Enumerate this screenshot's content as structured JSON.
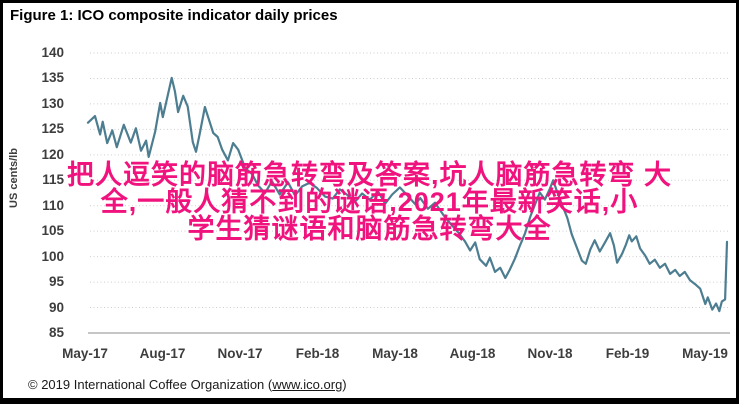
{
  "figure": {
    "title": "Figure 1: ICO composite indicator daily prices",
    "footer": {
      "prefix": "© 2019 International Coffee Organization (",
      "link_text": "www.ico.org",
      "suffix": ")"
    }
  },
  "overlay": {
    "color": "#f0127d",
    "lines": [
      "把人逗笑的脑筋急转弯及答案,坑人脑筋急转弯 大",
      "全,一般人猜不到的谜语,2021年最新笑话,小",
      "学生猜谜语和脑筋急转弯大全"
    ]
  },
  "chart_data": {
    "type": "line",
    "title": "ICO composite indicator daily prices",
    "xlabel": "",
    "ylabel": "US cents/lb",
    "ylim": [
      85,
      140
    ],
    "y_ticks": [
      140,
      135,
      130,
      125,
      120,
      115,
      110,
      105,
      100,
      95,
      90,
      85
    ],
    "x_ticks": [
      "May-17",
      "Aug-17",
      "Nov-17",
      "Feb-18",
      "May-18",
      "Aug-18",
      "Nov-18",
      "Feb-19",
      "May-19"
    ],
    "x_domain": [
      "May-2017",
      "May-2019"
    ],
    "grid": "horizontal-dotted",
    "legend": "none",
    "line_color": "#4d7d90",
    "grid_color": "#cfcfcf",
    "axis_color": "#b3b3b3",
    "series": [
      {
        "name": "ICO composite indicator daily price (US cents/lb)",
        "points": [
          [
            0,
            126.3
          ],
          [
            0.011,
            127.6
          ],
          [
            0.019,
            124
          ],
          [
            0.023,
            126.5
          ],
          [
            0.03,
            122.3
          ],
          [
            0.038,
            124.8
          ],
          [
            0.045,
            121.5
          ],
          [
            0.056,
            125.9
          ],
          [
            0.067,
            122.4
          ],
          [
            0.075,
            125.2
          ],
          [
            0.083,
            120.8
          ],
          [
            0.091,
            122.8
          ],
          [
            0.095,
            119.6
          ],
          [
            0.105,
            124.5
          ],
          [
            0.113,
            130.2
          ],
          [
            0.117,
            127.4
          ],
          [
            0.125,
            131.8
          ],
          [
            0.131,
            135.1
          ],
          [
            0.136,
            132.5
          ],
          [
            0.141,
            128.4
          ],
          [
            0.149,
            131.6
          ],
          [
            0.156,
            129.5
          ],
          [
            0.164,
            122.5
          ],
          [
            0.169,
            120.6
          ],
          [
            0.175,
            124.2
          ],
          [
            0.183,
            129.4
          ],
          [
            0.189,
            127
          ],
          [
            0.196,
            124.3
          ],
          [
            0.203,
            123.5
          ],
          [
            0.21,
            121
          ],
          [
            0.219,
            118.9
          ],
          [
            0.227,
            122.3
          ],
          [
            0.235,
            121
          ],
          [
            0.246,
            117.4
          ],
          [
            0.257,
            116.2
          ],
          [
            0.266,
            114
          ],
          [
            0.277,
            112.5
          ],
          [
            0.288,
            114.8
          ],
          [
            0.3,
            112.2
          ],
          [
            0.313,
            114.6
          ],
          [
            0.324,
            112
          ],
          [
            0.335,
            113.8
          ],
          [
            0.347,
            114.5
          ],
          [
            0.358,
            113.5
          ],
          [
            0.371,
            111.8
          ],
          [
            0.383,
            111.4
          ],
          [
            0.394,
            113.2
          ],
          [
            0.407,
            112
          ],
          [
            0.418,
            110.8
          ],
          [
            0.429,
            112.4
          ],
          [
            0.441,
            111.2
          ],
          [
            0.454,
            112.8
          ],
          [
            0.465,
            110.4
          ],
          [
            0.476,
            112.2
          ],
          [
            0.488,
            113.6
          ],
          [
            0.501,
            111.9
          ],
          [
            0.512,
            110.3
          ],
          [
            0.52,
            111.5
          ],
          [
            0.532,
            109.4
          ],
          [
            0.543,
            110.6
          ],
          [
            0.556,
            108.2
          ],
          [
            0.567,
            106.5
          ],
          [
            0.579,
            104.8
          ],
          [
            0.59,
            103
          ],
          [
            0.598,
            101.2
          ],
          [
            0.606,
            102.8
          ],
          [
            0.613,
            99.5
          ],
          [
            0.623,
            98.2
          ],
          [
            0.629,
            99.8
          ],
          [
            0.637,
            97
          ],
          [
            0.645,
            97.8
          ],
          [
            0.653,
            95.8
          ],
          [
            0.66,
            97.4
          ],
          [
            0.668,
            99.6
          ],
          [
            0.676,
            102.2
          ],
          [
            0.684,
            104.6
          ],
          [
            0.692,
            107.8
          ],
          [
            0.7,
            110.4
          ],
          [
            0.707,
            112.6
          ],
          [
            0.715,
            111.2
          ],
          [
            0.723,
            113.4
          ],
          [
            0.728,
            115
          ],
          [
            0.734,
            112.8
          ],
          [
            0.742,
            110.2
          ],
          [
            0.75,
            107.6
          ],
          [
            0.757,
            104.4
          ],
          [
            0.765,
            101.8
          ],
          [
            0.773,
            99.2
          ],
          [
            0.779,
            98.6
          ],
          [
            0.786,
            101.4
          ],
          [
            0.793,
            103.2
          ],
          [
            0.801,
            101
          ],
          [
            0.809,
            102.8
          ],
          [
            0.817,
            104.6
          ],
          [
            0.823,
            102.2
          ],
          [
            0.828,
            98.8
          ],
          [
            0.836,
            100.6
          ],
          [
            0.842,
            102.4
          ],
          [
            0.847,
            104.2
          ],
          [
            0.851,
            103
          ],
          [
            0.858,
            104
          ],
          [
            0.864,
            101.6
          ],
          [
            0.872,
            100.2
          ],
          [
            0.879,
            98.6
          ],
          [
            0.887,
            99.4
          ],
          [
            0.895,
            97.8
          ],
          [
            0.903,
            98.6
          ],
          [
            0.911,
            96.6
          ],
          [
            0.919,
            97.4
          ],
          [
            0.926,
            96.2
          ],
          [
            0.934,
            97
          ],
          [
            0.942,
            95.4
          ],
          [
            0.95,
            94.6
          ],
          [
            0.958,
            93.7
          ],
          [
            0.966,
            90.7
          ],
          [
            0.97,
            92
          ],
          [
            0.977,
            89.6
          ],
          [
            0.983,
            90.8
          ],
          [
            0.988,
            89.3
          ],
          [
            0.992,
            91.2
          ],
          [
            0.997,
            91.6
          ],
          [
            1,
            102.9
          ]
        ]
      }
    ]
  }
}
